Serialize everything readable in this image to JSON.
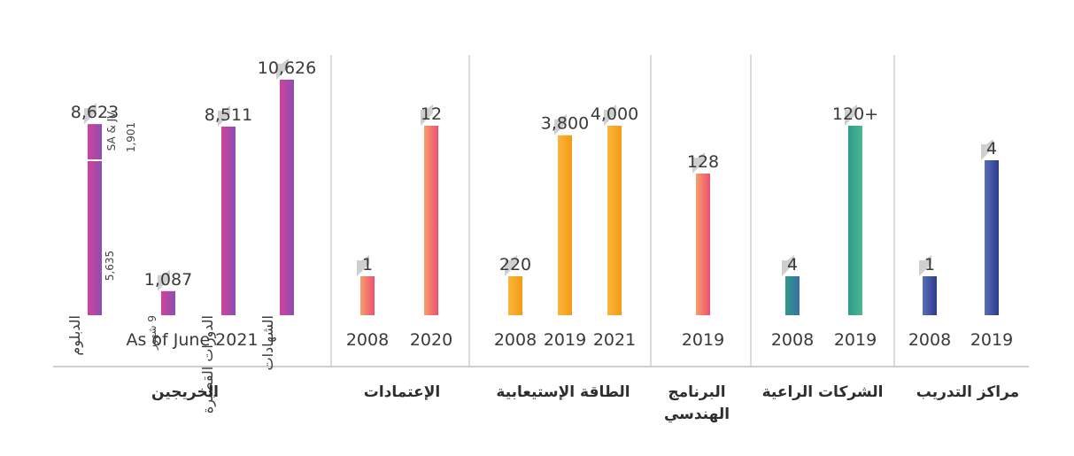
{
  "colors": {
    "magenta": "#c2409a",
    "violet": "#7a4fb0",
    "pink": "#ee5a73",
    "peach": "#fba06a",
    "amber": "#f6a51e",
    "green": "#3aa58e",
    "navy": "#2c3a8c",
    "slate": "#5a6fb8",
    "tab": "#d4d4d4",
    "divider": "#cfcfcf"
  },
  "chart_data": [
    {
      "type": "bar",
      "category": "الخريجين",
      "note": "As of June 2021",
      "bars": [
        {
          "label": "الدبلوم",
          "value": 8623,
          "value_label": "8,623",
          "segments": [
            {
              "label": "5,635",
              "value": 5635
            },
            {
              "label": "SA & JV 1,901",
              "value": 1901
            }
          ]
        },
        {
          "label": "9 شهور",
          "value": 1087,
          "value_label": "1,087"
        },
        {
          "label": "الدورات القصيرة",
          "value": 8511,
          "value_label": "8,511"
        },
        {
          "label": "الشهادات",
          "value": 10626,
          "value_label": "10,626"
        }
      ]
    },
    {
      "type": "bar",
      "category": "الإعتمادات",
      "categories": [
        "2008",
        "2020"
      ],
      "values": [
        1,
        12
      ],
      "value_labels": [
        "1",
        "12"
      ]
    },
    {
      "type": "bar",
      "category": "الطاقة الإستيعابية",
      "categories": [
        "2008",
        "2019",
        "2021"
      ],
      "values": [
        220,
        3800,
        4000
      ],
      "value_labels": [
        "220",
        "3,800",
        "4,000"
      ]
    },
    {
      "type": "bar",
      "category": "البرنامج الهندسي",
      "categories": [
        "2019"
      ],
      "values": [
        128
      ],
      "value_labels": [
        "128"
      ]
    },
    {
      "type": "bar",
      "category": "الشركات الراعية",
      "categories": [
        "2008",
        "2019"
      ],
      "values": [
        4,
        120
      ],
      "value_labels": [
        "4",
        "120+"
      ]
    },
    {
      "type": "bar",
      "category": "مراكز التدريب",
      "categories": [
        "2008",
        "2019"
      ],
      "values": [
        1,
        4
      ],
      "value_labels": [
        "1",
        "4"
      ]
    }
  ],
  "category_lines": {
    "engineering": [
      "البرنامج",
      "الهندسي"
    ]
  }
}
